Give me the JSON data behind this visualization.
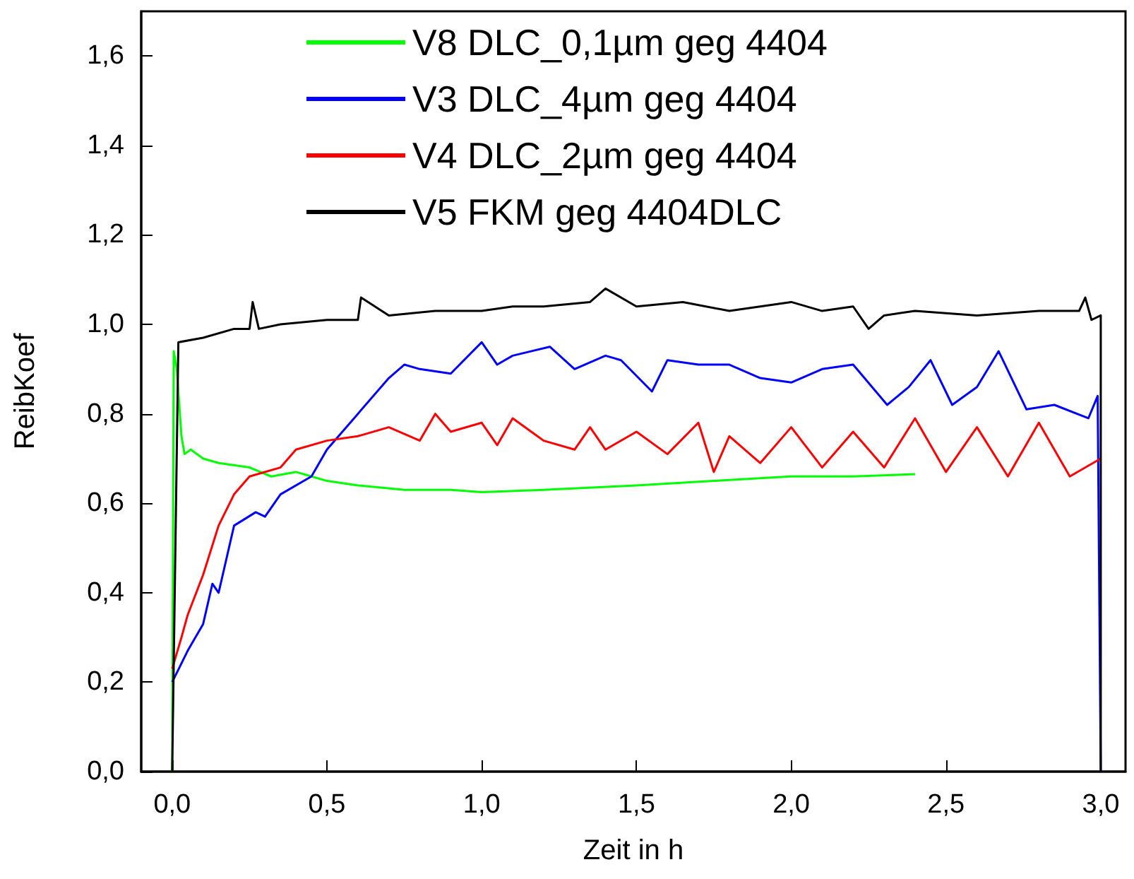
{
  "chart_data": {
    "type": "line",
    "xlabel": "Zeit in h",
    "ylabel": "ReibKoef",
    "xlim": [
      -0.1,
      3.08
    ],
    "xticks": [
      {
        "value": 0,
        "label": "0,0"
      },
      {
        "value": 0.5,
        "label": "0,5"
      },
      {
        "value": 1,
        "label": "1,0"
      },
      {
        "value": 1.5,
        "label": "1,5"
      },
      {
        "value": 2,
        "label": "2,0"
      },
      {
        "value": 2.5,
        "label": "2,5"
      },
      {
        "value": 3,
        "label": "3,0"
      }
    ],
    "ylim": [
      0,
      1.7
    ],
    "yticks": [
      {
        "value": 0,
        "label": "0,0"
      },
      {
        "value": 0.2,
        "label": "0,2"
      },
      {
        "value": 0.4,
        "label": "0,4"
      },
      {
        "value": 0.6,
        "label": "0,6"
      },
      {
        "value": 0.8,
        "label": "0,8"
      },
      {
        "value": 1,
        "label": "1,0"
      },
      {
        "value": 1.2,
        "label": "1,2"
      },
      {
        "value": 1.4,
        "label": "1,4"
      },
      {
        "value": 1.6,
        "label": "1,6"
      }
    ],
    "grid": false,
    "legend": "top",
    "marker": "none",
    "line_style": "solid",
    "series": [
      {
        "name": "V8 DLC_0,1µm geg 4404",
        "color": "#00ff00",
        "x": [
          0,
          0.005,
          0.015,
          0.03,
          0.04,
          0.06,
          0.1,
          0.15,
          0.25,
          0.32,
          0.4,
          0.45,
          0.5,
          0.6,
          0.75,
          0.9,
          1.0,
          1.2,
          1.5,
          1.75,
          2.0,
          2.2,
          2.4
        ],
        "values": [
          0,
          0.94,
          0.9,
          0.75,
          0.71,
          0.72,
          0.7,
          0.69,
          0.68,
          0.66,
          0.67,
          0.66,
          0.65,
          0.64,
          0.63,
          0.63,
          0.625,
          0.63,
          0.64,
          0.65,
          0.66,
          0.66,
          0.665
        ]
      },
      {
        "name": "V3 DLC_4µm geg 4404",
        "color": "#0000ff",
        "x": [
          0,
          0.05,
          0.1,
          0.13,
          0.15,
          0.2,
          0.27,
          0.3,
          0.35,
          0.45,
          0.5,
          0.6,
          0.7,
          0.75,
          0.8,
          0.9,
          1.0,
          1.05,
          1.1,
          1.22,
          1.3,
          1.4,
          1.45,
          1.55,
          1.6,
          1.7,
          1.8,
          1.9,
          2.0,
          2.1,
          2.2,
          2.31,
          2.38,
          2.45,
          2.52,
          2.6,
          2.67,
          2.76,
          2.85,
          2.96,
          2.99,
          3.0
        ],
        "values": [
          0.2,
          0.27,
          0.33,
          0.42,
          0.4,
          0.55,
          0.58,
          0.57,
          0.62,
          0.66,
          0.72,
          0.8,
          0.88,
          0.91,
          0.9,
          0.89,
          0.96,
          0.91,
          0.93,
          0.95,
          0.9,
          0.93,
          0.92,
          0.85,
          0.92,
          0.91,
          0.91,
          0.88,
          0.87,
          0.9,
          0.91,
          0.82,
          0.86,
          0.92,
          0.82,
          0.86,
          0.94,
          0.81,
          0.82,
          0.79,
          0.84,
          0
        ]
      },
      {
        "name": "V4 DLC_2µm geg 4404",
        "color": "#ff0000",
        "x": [
          0,
          0.03,
          0.05,
          0.1,
          0.15,
          0.2,
          0.25,
          0.35,
          0.4,
          0.5,
          0.6,
          0.7,
          0.8,
          0.85,
          0.9,
          1.0,
          1.05,
          1.1,
          1.2,
          1.3,
          1.35,
          1.4,
          1.5,
          1.6,
          1.7,
          1.75,
          1.8,
          1.9,
          2.0,
          2.1,
          2.2,
          2.3,
          2.4,
          2.5,
          2.6,
          2.7,
          2.8,
          2.9,
          3.0
        ],
        "values": [
          0.23,
          0.3,
          0.35,
          0.44,
          0.55,
          0.62,
          0.66,
          0.68,
          0.72,
          0.74,
          0.75,
          0.77,
          0.74,
          0.8,
          0.76,
          0.78,
          0.73,
          0.79,
          0.74,
          0.72,
          0.77,
          0.72,
          0.76,
          0.71,
          0.78,
          0.67,
          0.75,
          0.69,
          0.77,
          0.68,
          0.76,
          0.68,
          0.79,
          0.67,
          0.77,
          0.66,
          0.78,
          0.66,
          0.7
        ]
      },
      {
        "name": "V5 FKM geg 4404DLC",
        "color": "#000000",
        "x": [
          0,
          0.02,
          0.1,
          0.2,
          0.25,
          0.26,
          0.28,
          0.35,
          0.5,
          0.6,
          0.61,
          0.7,
          0.85,
          1.0,
          1.1,
          1.2,
          1.35,
          1.4,
          1.5,
          1.65,
          1.8,
          1.9,
          2.0,
          2.1,
          2.2,
          2.25,
          2.3,
          2.4,
          2.6,
          2.8,
          2.93,
          2.95,
          2.97,
          3.0,
          3.0
        ],
        "values": [
          0,
          0.96,
          0.97,
          0.99,
          0.99,
          1.05,
          0.99,
          1.0,
          1.01,
          1.01,
          1.06,
          1.02,
          1.03,
          1.03,
          1.04,
          1.04,
          1.05,
          1.08,
          1.04,
          1.05,
          1.03,
          1.04,
          1.05,
          1.03,
          1.04,
          0.99,
          1.02,
          1.03,
          1.02,
          1.03,
          1.03,
          1.06,
          1.01,
          1.02,
          0
        ]
      }
    ]
  }
}
